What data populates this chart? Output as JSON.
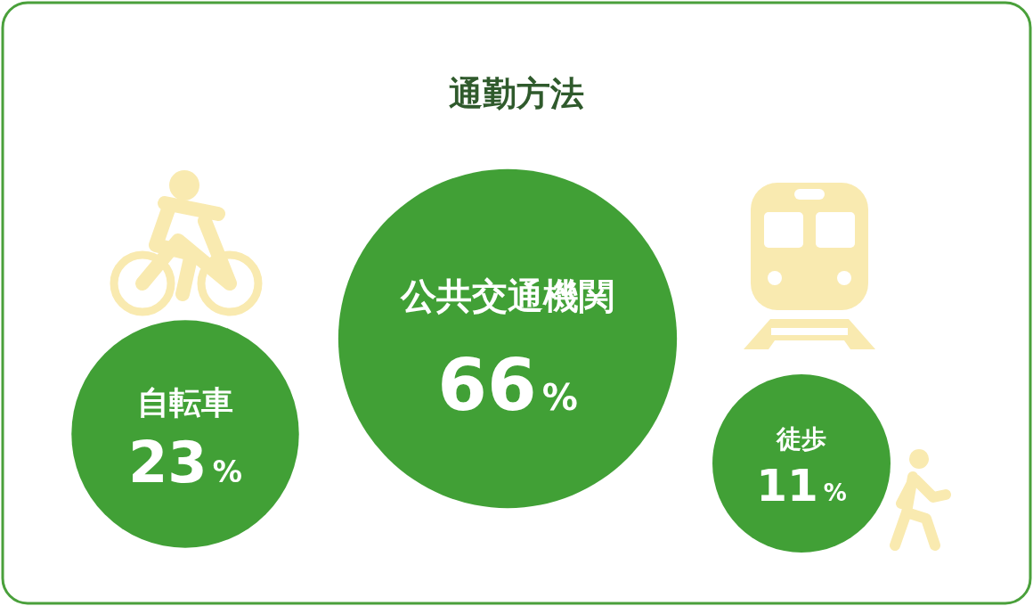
{
  "chart_data": {
    "type": "other",
    "title": "通勤方法",
    "categories": [
      "自転車",
      "公共交通機関",
      "徒歩"
    ],
    "values": [
      23,
      66,
      11
    ],
    "colors": [
      "#41a036",
      "#41a036",
      "#41a036"
    ],
    "value_labels": [
      "23%",
      "66%",
      "11%"
    ]
  }
}
